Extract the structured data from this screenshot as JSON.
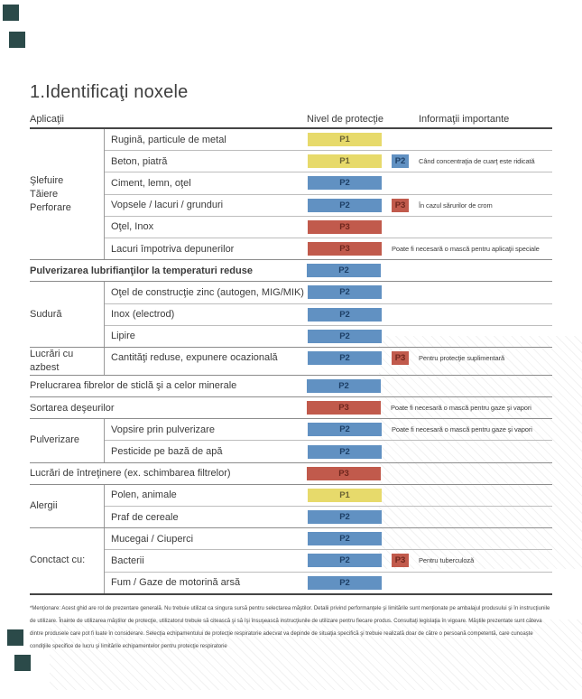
{
  "page": {
    "title": "1.Identificaţi noxele"
  },
  "table": {
    "headers": {
      "applications": "Aplicaţii",
      "protection": "Nivel de protecţie",
      "info": "Informaţii importante"
    },
    "sections": [
      {
        "group": [
          "Şlefuire",
          "Tăiere",
          "Perforare"
        ],
        "rows": [
          {
            "label": "Rugină, particule de metal",
            "level": "p1",
            "badge": "P1"
          },
          {
            "label": "Beton, piatră",
            "level": "p1",
            "badge": "P1",
            "extra_level": "p2",
            "extra_badge": "P2",
            "info": "Când concentraţia de cuarţ este ridicată"
          },
          {
            "label": "Ciment, lemn, oţel",
            "level": "p2",
            "badge": "P2"
          },
          {
            "label": "Vopsele / lacuri / grunduri",
            "level": "p2",
            "badge": "P2",
            "extra_level": "p3",
            "extra_badge": "P3",
            "info": "În cazul sărurilor de crom"
          },
          {
            "label": "Oţel, Inox",
            "level": "p3",
            "badge": "P3"
          },
          {
            "label": "Lacuri împotriva depunerilor",
            "level": "p3",
            "badge": "P3",
            "info": "Poate fi necesară o mască pentru aplicaţii speciale"
          }
        ]
      },
      {
        "rows": [
          {
            "label": "Pulverizarea lubrifianţilor la temperaturi reduse",
            "bold": true,
            "level": "p2",
            "badge": "P2"
          }
        ]
      },
      {
        "group": [
          "Sudură"
        ],
        "rows": [
          {
            "label": "Oţel de construcţie zinc (autogen, MIG/MIK)",
            "level": "p2",
            "badge": "P2"
          },
          {
            "label": "Inox (electrod)",
            "level": "p2",
            "badge": "P2"
          },
          {
            "label": "Lipire",
            "level": "p2",
            "badge": "P2"
          }
        ]
      },
      {
        "group": [
          "Lucrări cu azbest"
        ],
        "rows": [
          {
            "label": "Cantităţi reduse, expunere ocazională",
            "level": "p2",
            "badge": "P2",
            "extra_level": "p3",
            "extra_badge": "P3",
            "info": "Pentru protecţie suplimentară"
          }
        ]
      },
      {
        "rows": [
          {
            "label": "Prelucrarea fibrelor de sticlă şi a celor minerale",
            "level": "p2",
            "badge": "P2"
          }
        ]
      },
      {
        "rows": [
          {
            "label": "Sortarea deşeurilor",
            "level": "p3",
            "badge": "P3",
            "info": "Poate fi necesară o mască pentru gaze şi vapori"
          }
        ]
      },
      {
        "group": [
          "Pulverizare"
        ],
        "rows": [
          {
            "label": "Vopsire prin pulverizare",
            "level": "p2",
            "badge": "P2",
            "info": "Poate fi necesară o mască pentru gaze şi vapori"
          },
          {
            "label": "Pesticide pe bază de apă",
            "level": "p2",
            "badge": "P2"
          }
        ]
      },
      {
        "rows": [
          {
            "label": "Lucrări de întreţinere (ex. schimbarea filtrelor)",
            "level": "p3",
            "badge": "P3"
          }
        ]
      },
      {
        "group": [
          "Alergii"
        ],
        "rows": [
          {
            "label": "Polen, animale",
            "level": "p1",
            "badge": "P1"
          },
          {
            "label": "Praf de cereale",
            "level": "p2",
            "badge": "P2"
          }
        ]
      },
      {
        "group": [
          "Conctact cu:"
        ],
        "rows": [
          {
            "label": "Mucegai / Ciuperci",
            "level": "p2",
            "badge": "P2"
          },
          {
            "label": "Bacterii",
            "level": "p2",
            "badge": "P2",
            "extra_level": "p3",
            "extra_badge": "P3",
            "info": "Pentru tuberculoză"
          },
          {
            "label": "Fum / Gaze de motorină arsă",
            "level": "p2",
            "badge": "P2"
          }
        ]
      }
    ]
  },
  "footnote": "*Menţionare: Acest ghid are rol de prezentare generală. Nu trebuie utilizat ca singura sursă pentru selectarea măştilor. Detalii privind performanţele şi limitările sunt menţionate pe ambalajul produsului şi în instrucţiunile de utilizare. Înainte de utilizarea măştilor de protecţie, utilizatorul trebuie să citească şi să îşi însuşească instrucţiunile de utilizare pentru fiecare produs. Consultaţi legislaţia în vigoare. Măştile prezentate sunt câteva dintre produsele care pot fi luate în considerare. Selecţia echipamentului de protecţie respiratorie adecvat va depinde de situaţia specifică şi trebuie realizată doar de către o persoană competentă, care cunoaşte condiţiile specifice de lucru şi limitările echipamentelor pentru protecţie respiratorie",
  "colors": {
    "p1_bg": "#e7da6b",
    "p1_text": "#6a6233",
    "p2_bg": "#6191c2",
    "p2_text": "#1d3f66",
    "p3_bg": "#c15a4c",
    "p3_text": "#6e261d",
    "corner_mark": "#2b4a49"
  }
}
